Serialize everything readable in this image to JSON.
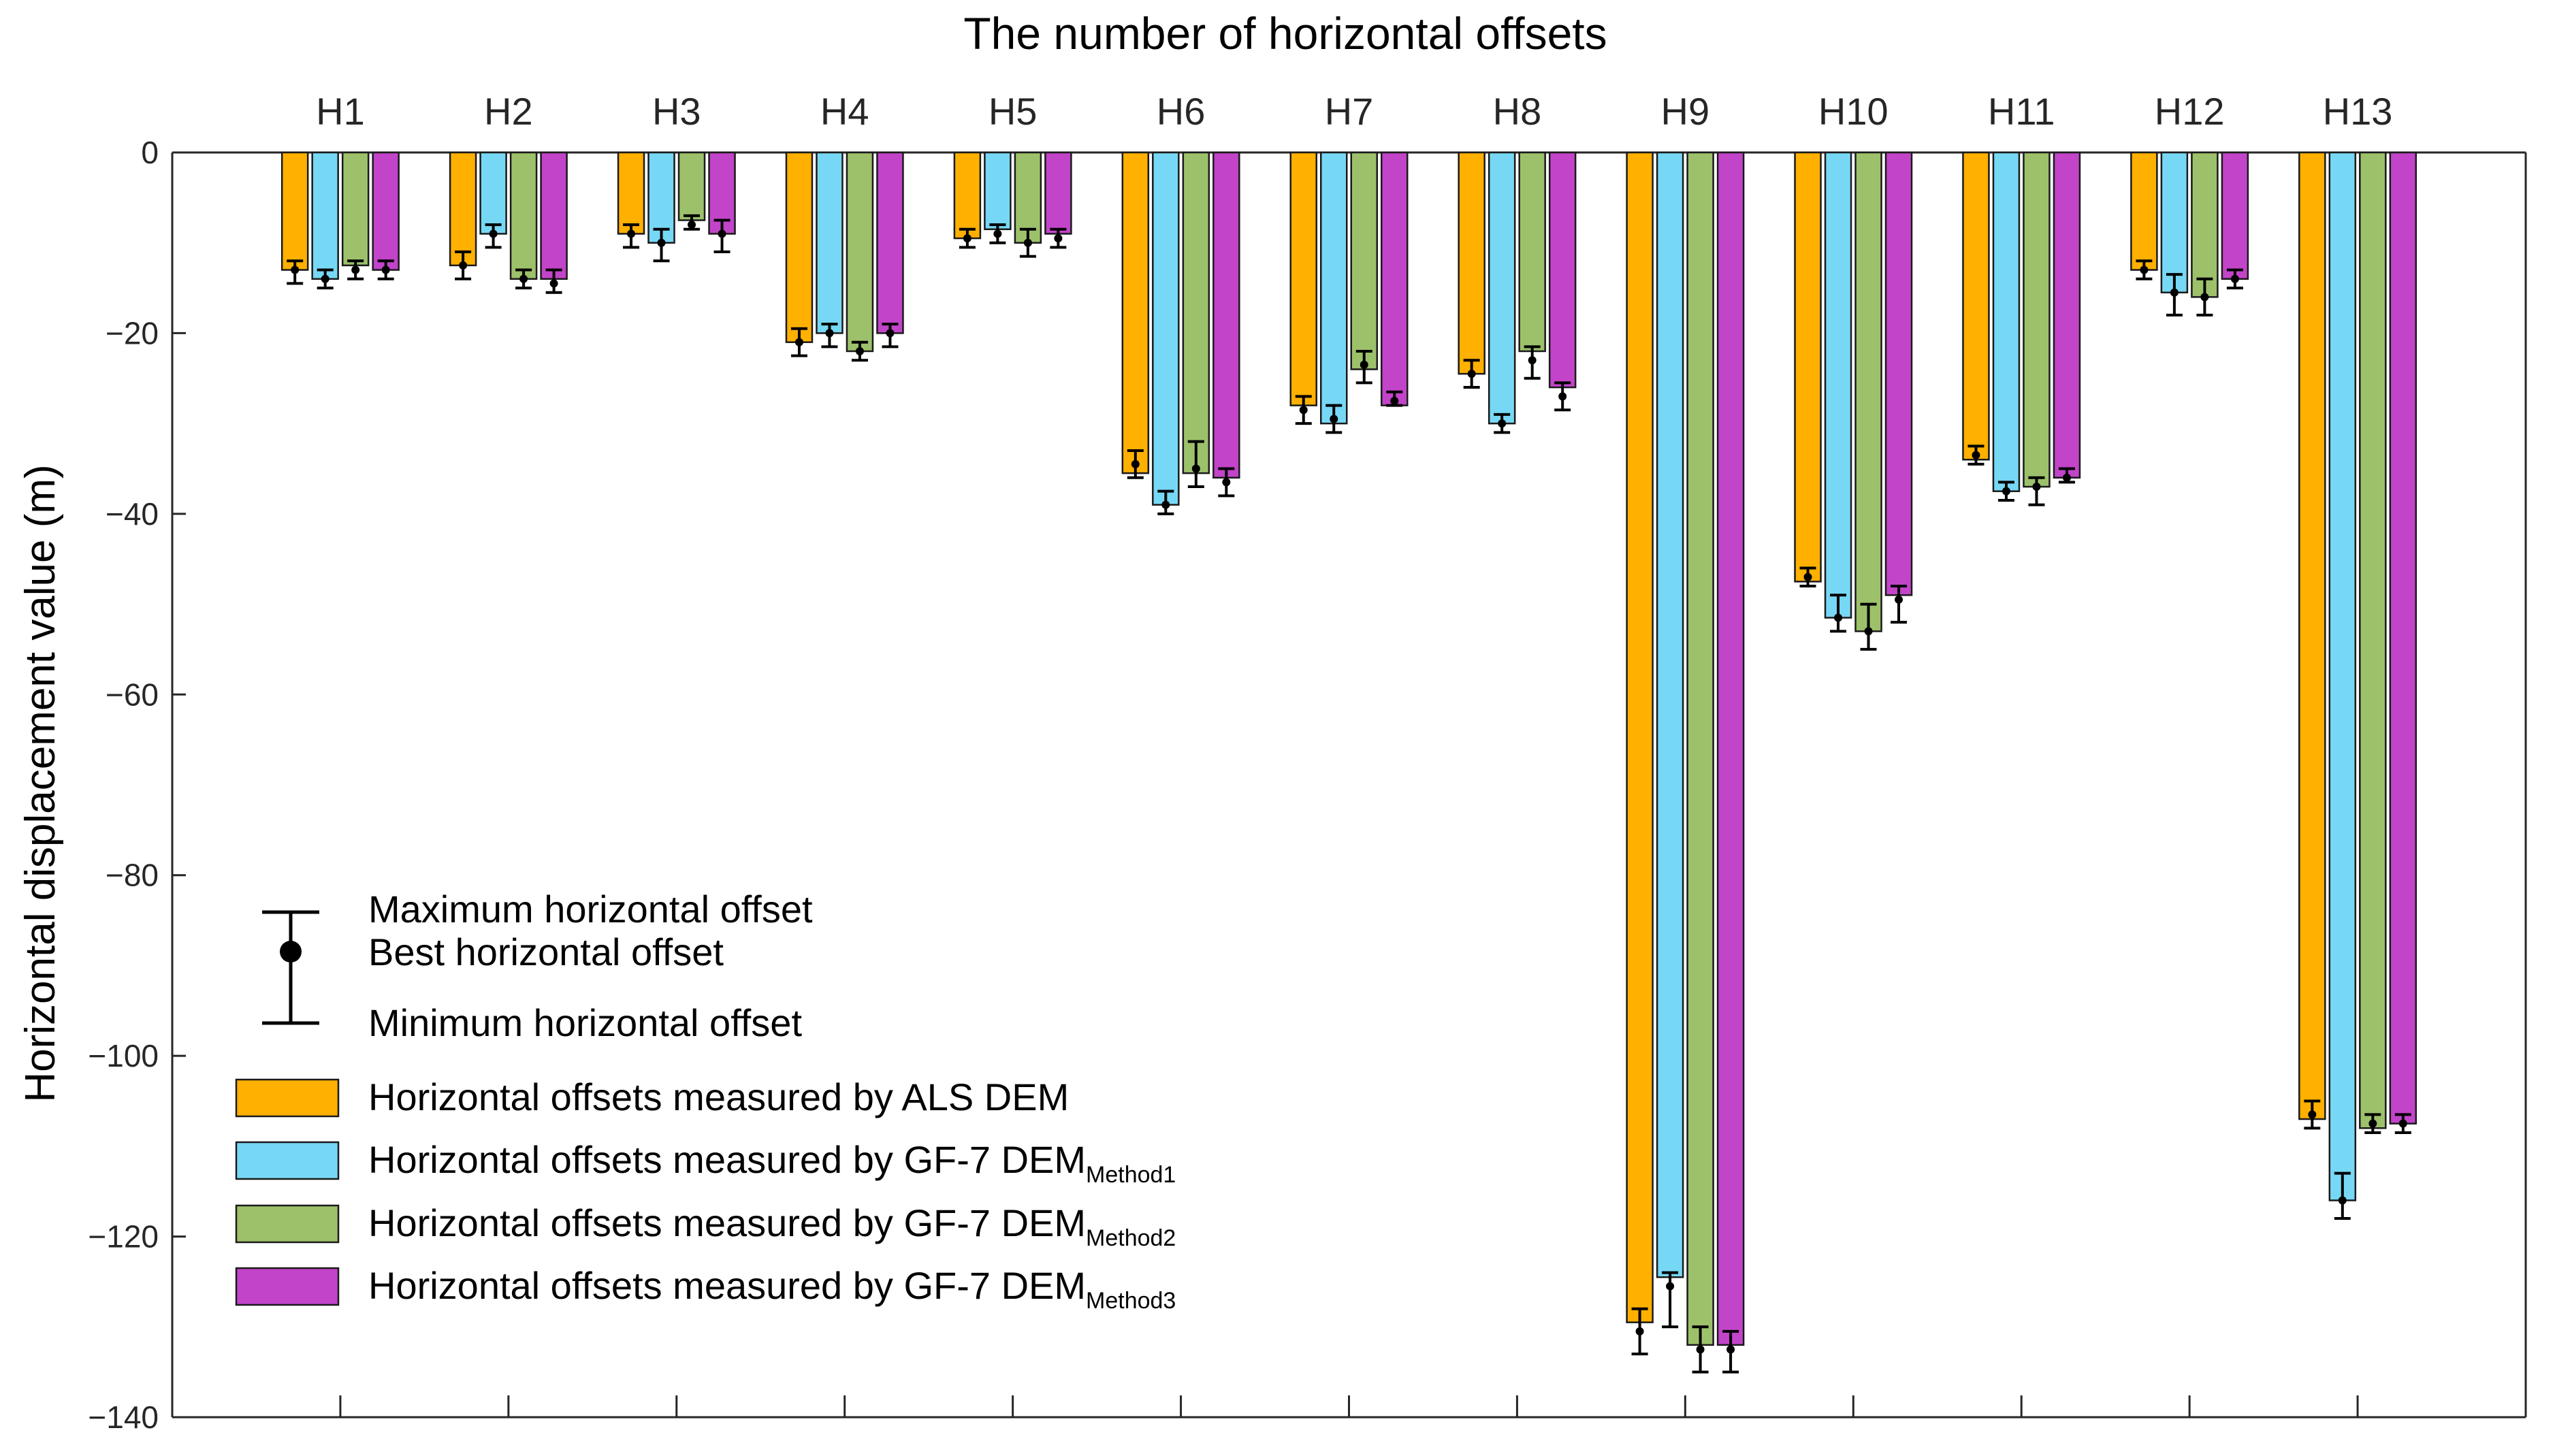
{
  "chart_data": {
    "type": "bar",
    "title": "The number of horizontal offsets",
    "xlabel": "",
    "ylabel": "Horizontal displacement value (m)",
    "ylim": [
      -140,
      0
    ],
    "yticks": [
      0,
      -20,
      -40,
      -60,
      -80,
      -100,
      -120,
      -140
    ],
    "ytick_labels": [
      "0",
      "−20",
      "−40",
      "−60",
      "−80",
      "−100",
      "−120",
      "−140"
    ],
    "categories": [
      "H1",
      "H2",
      "H3",
      "H4",
      "H5",
      "H6",
      "H7",
      "H8",
      "H9",
      "H10",
      "H11",
      "H12",
      "H13"
    ],
    "series": [
      {
        "name": "Horizontal offsets measured by ALS DEM",
        "color": "#FFB000",
        "values": [
          -13,
          -12.5,
          -9,
          -21,
          -9.5,
          -35.5,
          -28,
          -24.5,
          -129.5,
          -47.5,
          -34,
          -13,
          -107
        ],
        "best": [
          -13,
          -12.5,
          -9,
          -21,
          -9.5,
          -34.5,
          -28.5,
          -24.5,
          -130.5,
          -47,
          -33.5,
          -13,
          -106.5
        ],
        "err_min": [
          -12,
          -11,
          -8,
          -19.5,
          -8.5,
          -33,
          -27,
          -23,
          -128,
          -46,
          -32.5,
          -12,
          -105
        ],
        "err_max": [
          -14.5,
          -14,
          -10.5,
          -22.5,
          -10.5,
          -36,
          -30,
          -26,
          -133,
          -48,
          -34.5,
          -14,
          -108
        ]
      },
      {
        "name": "Horizontal offsets measured by GF-7 DEM",
        "name_sub": "Method1",
        "color": "#77D8F5",
        "values": [
          -14,
          -9,
          -10,
          -20,
          -8.5,
          -39,
          -30,
          -30,
          -124.5,
          -51.5,
          -37.5,
          -15.5,
          -116
        ],
        "best": [
          -14,
          -9,
          -10,
          -20,
          -9,
          -39,
          -29.5,
          -30,
          -125.5,
          -51.5,
          -37.5,
          -15.5,
          -116
        ],
        "err_min": [
          -13,
          -8,
          -8.5,
          -19,
          -8,
          -37.5,
          -28,
          -29,
          -124,
          -49,
          -36.5,
          -13.5,
          -113
        ],
        "err_max": [
          -15,
          -10.5,
          -12,
          -21.5,
          -10,
          -40,
          -31,
          -31,
          -130,
          -53,
          -38.5,
          -18,
          -118
        ]
      },
      {
        "name": "Horizontal offsets measured by GF-7 DEM",
        "name_sub": "Method2",
        "color": "#9DC16B",
        "values": [
          -12.5,
          -14,
          -7.5,
          -22,
          -10,
          -35.5,
          -24,
          -22,
          -132,
          -53,
          -37,
          -16,
          -108
        ],
        "best": [
          -13,
          -14,
          -8,
          -22,
          -10,
          -35,
          -23.5,
          -23,
          -132.5,
          -53,
          -37,
          -16,
          -107.5
        ],
        "err_min": [
          -12,
          -13,
          -7,
          -21,
          -8.5,
          -32,
          -22,
          -21.5,
          -130,
          -50,
          -36,
          -14,
          -106.5
        ],
        "err_max": [
          -14,
          -15,
          -8.5,
          -23,
          -11.5,
          -37,
          -25.5,
          -25,
          -135,
          -55,
          -39,
          -18,
          -108.5
        ]
      },
      {
        "name": "Horizontal offsets measured by GF-7 DEM",
        "name_sub": "Method3",
        "color": "#C244C9",
        "values": [
          -13,
          -14,
          -9,
          -20,
          -9,
          -36,
          -28,
          -26,
          -132,
          -49,
          -36,
          -14,
          -107.5
        ],
        "best": [
          -13,
          -14.5,
          -9,
          -20,
          -9.5,
          -36.5,
          -27.5,
          -27,
          -132.5,
          -49.5,
          -36,
          -14,
          -107.5
        ],
        "err_min": [
          -12,
          -13,
          -7.5,
          -19,
          -8.5,
          -35,
          -26.5,
          -25.5,
          -130.5,
          -48,
          -35,
          -13,
          -106.5
        ],
        "err_max": [
          -14,
          -15.5,
          -11,
          -21.5,
          -10.5,
          -38,
          -28,
          -28.5,
          -135,
          -52,
          -36.5,
          -15,
          -108.5
        ]
      }
    ],
    "legend": {
      "position": "lower-left",
      "errorbar_max": "Maximum horizontal offset",
      "errorbar_best": "Best horizontal offset",
      "errorbar_min": "Minimum horizontal offset"
    }
  }
}
